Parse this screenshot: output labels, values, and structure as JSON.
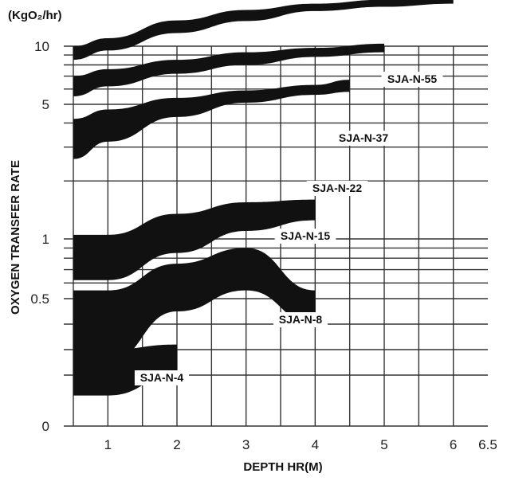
{
  "chart_data": {
    "type": "area",
    "unit_label": "(KgO₂/hr)",
    "xlabel": "DEPTH HR(M)",
    "ylabel": "OXYGEN TRANSFER RATE",
    "x_ticks": [
      "1",
      "2",
      "3",
      "4",
      "5",
      "6",
      "6.5"
    ],
    "y_ticks": [
      "10",
      "5",
      "1",
      "0.5",
      "0"
    ],
    "xlim": [
      0.5,
      6.5
    ],
    "grid": true,
    "series": [
      {
        "name": "SJA-N-55",
        "color": "#111111",
        "x": [
          0.5,
          1,
          2,
          3,
          4,
          5,
          6
        ],
        "upper": [
          10.0,
          11.0,
          13.6,
          15.4,
          16.6,
          17.4,
          17.6
        ],
        "lower": [
          8.5,
          9.5,
          11.7,
          13.5,
          15.2,
          16.0,
          16.6
        ]
      },
      {
        "name": "SJA-N-37",
        "color": "#111111",
        "x": [
          0.5,
          1,
          2,
          3,
          4,
          5
        ],
        "upper": [
          7.0,
          7.6,
          8.5,
          9.3,
          9.8,
          10.3
        ],
        "lower": [
          5.5,
          6.2,
          7.2,
          8.0,
          8.8,
          9.3
        ]
      },
      {
        "name": "SJA-N-22",
        "color": "#111111",
        "x": [
          0.5,
          1,
          2,
          3,
          4,
          4.5
        ],
        "upper": [
          4.2,
          4.7,
          5.4,
          5.9,
          6.3,
          6.7
        ],
        "lower": [
          2.6,
          3.2,
          4.3,
          5.1,
          5.6,
          5.8
        ]
      },
      {
        "name": "SJA-N-15",
        "color": "#111111",
        "x": [
          0.5,
          1,
          2,
          3,
          4
        ],
        "upper": [
          1.05,
          1.05,
          1.35,
          1.55,
          1.6
        ],
        "lower": [
          0.62,
          0.62,
          0.85,
          1.1,
          1.25
        ]
      },
      {
        "name": "SJA-N-8",
        "color": "#111111",
        "x": [
          0.5,
          1,
          2,
          3,
          4
        ],
        "upper": [
          0.55,
          0.55,
          0.75,
          0.9,
          0.55
        ],
        "lower": [
          0.25,
          0.25,
          0.45,
          0.55,
          0.4
        ]
      },
      {
        "name": "SJA-N-4",
        "color": "#111111",
        "x": [
          0.5,
          1,
          2
        ],
        "upper": [
          0.3,
          0.3,
          0.32
        ],
        "lower": [
          0.12,
          0.12,
          0.2
        ]
      }
    ]
  }
}
